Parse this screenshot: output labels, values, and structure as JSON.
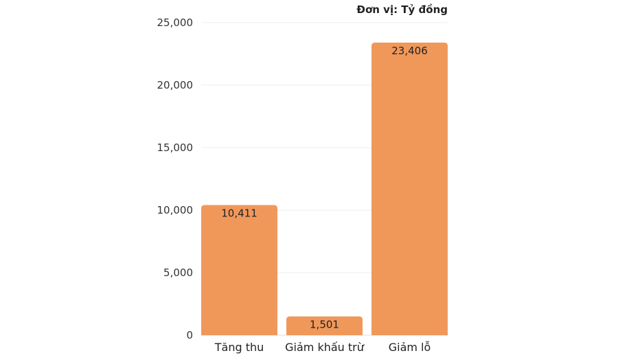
{
  "unit_label": "Đơn vị: Tỷ đồng",
  "chart_data": {
    "type": "bar",
    "categories": [
      "Tăng thu",
      "Giảm khấu trừ",
      "Giảm lỗ"
    ],
    "values": [
      10411,
      1501,
      23406
    ],
    "value_labels": [
      "10,411",
      "1,501",
      "23,406"
    ],
    "y_ticks": [
      0,
      5000,
      10000,
      15000,
      20000,
      25000
    ],
    "y_tick_labels": [
      "0",
      "5,000",
      "10,000",
      "15,000",
      "20,000",
      "25,000"
    ],
    "ylim": [
      0,
      25000
    ],
    "grid": true,
    "bar_color": "#F0985A"
  }
}
